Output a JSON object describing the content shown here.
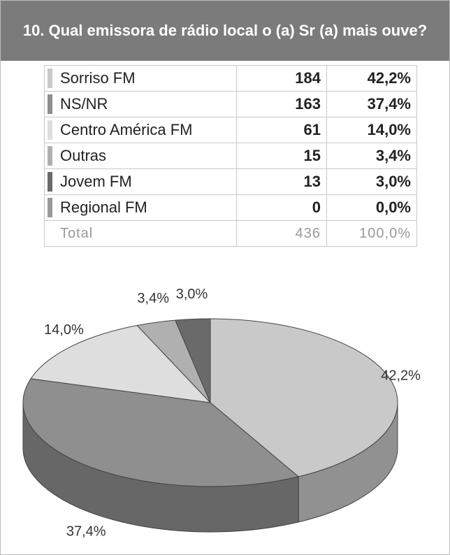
{
  "title": "10. Qual emissora de rádio local o (a) Sr (a) mais ouve?",
  "table": {
    "rows": [
      [
        "Sorriso FM",
        "184",
        "42,2%"
      ],
      [
        "NS/NR",
        "163",
        "37,4%"
      ],
      [
        "Centro América FM",
        "61",
        "14,0%"
      ],
      [
        "Outras",
        "15",
        "3,4%"
      ],
      [
        "Jovem FM",
        "13",
        "3,0%"
      ],
      [
        "Regional FM",
        "0",
        "0,0%"
      ]
    ],
    "total": [
      "Total",
      "436",
      "100,0%"
    ]
  },
  "chart_data": {
    "type": "pie",
    "values": [
      42.2,
      37.4,
      14.0,
      3.4,
      3.0,
      0.0
    ],
    "value_labels": [
      "42,2%",
      "37,4%",
      "14,0%",
      "3,4%",
      "3,0%",
      null
    ],
    "colors": [
      "#c9c9c9",
      "#8f8f8f",
      "#dedede",
      "#b0b0b0",
      "#6a6a6a",
      "#9a9a9a"
    ]
  }
}
